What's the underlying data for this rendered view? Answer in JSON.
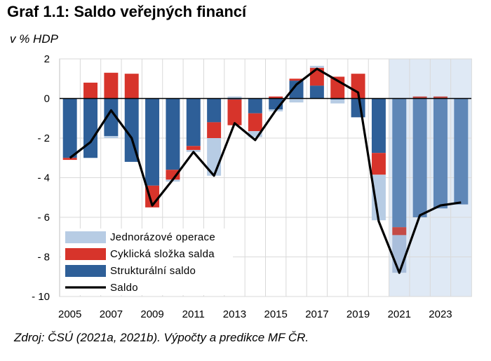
{
  "title": "Graf 1.1: Saldo veřejných financí",
  "subtitle": "v % HDP",
  "source": "Zdroj: ČSÚ (2021a, 2021b). Výpočty a predikce MF ČR.",
  "colors": {
    "one_off": "#b7cce4",
    "cyclical": "#d7342b",
    "structural": "#2e5f98",
    "structural_forecast": "#5f87b7",
    "one_off_forecast": "#a9bedb",
    "cyclical_forecast": "#c44a45",
    "balance_line": "#000000",
    "forecast_shade": "#dfe9f5"
  },
  "chart_data": {
    "type": "bar",
    "stacked": true,
    "years": [
      2005,
      2006,
      2007,
      2008,
      2009,
      2010,
      2011,
      2012,
      2013,
      2014,
      2015,
      2016,
      2017,
      2018,
      2019,
      2020,
      2021,
      2022,
      2023,
      2024
    ],
    "x_tick_labels": [
      "2005",
      "2007",
      "2009",
      "2011",
      "2013",
      "2015",
      "2017",
      "2019",
      "2021",
      "2023"
    ],
    "ylim": [
      -10,
      2
    ],
    "y_ticks": [
      2,
      0,
      -2,
      -4,
      -6,
      -8,
      -10
    ],
    "y_tick_labels": [
      "2",
      "0",
      "- 2",
      "- 4",
      "- 6",
      "- 8",
      "- 10"
    ],
    "grid": true,
    "forecast_from": 2021,
    "legend_position": "bottom-left",
    "series": [
      {
        "name": "Jednorázové operace",
        "kind": "bar",
        "values": [
          0,
          0,
          -0.1,
          0,
          0,
          -0.1,
          -0.1,
          -1.9,
          0.1,
          -0.3,
          -0.1,
          -0.2,
          0.1,
          -0.2,
          0,
          -2.3,
          -1.9,
          0,
          0,
          0
        ]
      },
      {
        "name": "Cyklická složka salda",
        "kind": "bar",
        "values": [
          -0.1,
          0.8,
          1.3,
          1.25,
          -1.1,
          -0.5,
          -0.2,
          -0.8,
          -1.3,
          -0.9,
          0.1,
          0.1,
          0.9,
          1.1,
          1.25,
          -1.1,
          -0.4,
          0.1,
          0.1,
          0
        ]
      },
      {
        "name": "Strukturální saldo",
        "kind": "bar",
        "values": [
          -3.0,
          -3.0,
          -1.9,
          -3.2,
          -4.4,
          -3.6,
          -2.4,
          -1.2,
          -0.05,
          -0.75,
          -0.55,
          0.9,
          0.65,
          -0.05,
          -0.95,
          -2.75,
          -6.5,
          -6.0,
          -5.55,
          -5.35
        ]
      },
      {
        "name": "Saldo",
        "kind": "line",
        "values": [
          -3.0,
          -2.2,
          -0.6,
          -2.0,
          -5.4,
          -4.1,
          -2.7,
          -3.9,
          -1.25,
          -2.1,
          -0.6,
          0.7,
          1.5,
          0.9,
          0.3,
          -6.2,
          -8.8,
          -5.9,
          -5.4,
          -5.25
        ]
      }
    ]
  }
}
